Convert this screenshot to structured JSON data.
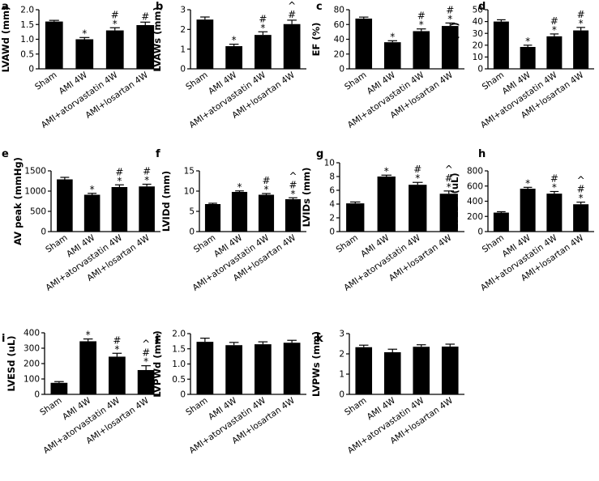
{
  "chart_data": [
    {
      "id": "a",
      "type": "bar",
      "letter": "a",
      "ylabel": "LVAWd (mm)",
      "ylim": [
        0,
        2.0
      ],
      "yticks": [
        0,
        0.5,
        1.0,
        1.5,
        2.0
      ],
      "yticklabels": [
        "0",
        "0.5",
        "1.0",
        "1.5",
        "2.0"
      ],
      "categories": [
        "Sham",
        "AMI  4W",
        "AMI+atorvastatin 4W",
        "AMI+losartan 4W"
      ],
      "values": [
        1.6,
        1.0,
        1.3,
        1.48
      ],
      "errors": [
        0.04,
        0.06,
        0.09,
        0.1
      ],
      "annotations": [
        [],
        [
          "*"
        ],
        [
          "*",
          "#"
        ],
        [
          "#"
        ]
      ]
    },
    {
      "id": "b",
      "type": "bar",
      "letter": "b",
      "ylabel": "LVAWs (mm)",
      "ylim": [
        0,
        3
      ],
      "yticks": [
        0,
        1,
        2,
        3
      ],
      "yticklabels": [
        "0",
        "1",
        "2",
        "3"
      ],
      "categories": [
        "Sham",
        "AMI  4W",
        "AMI+atorvastatin 4W",
        "AMI+losartan 4W"
      ],
      "values": [
        2.5,
        1.15,
        1.72,
        2.27
      ],
      "errors": [
        0.13,
        0.1,
        0.16,
        0.2
      ],
      "annotations": [
        [],
        [
          "*"
        ],
        [
          "*",
          "#"
        ],
        [
          "#",
          "^"
        ]
      ]
    },
    {
      "id": "c",
      "type": "bar",
      "letter": "c",
      "ylabel": "EF (%)",
      "ylim": [
        0,
        80
      ],
      "yticks": [
        0,
        20,
        40,
        60,
        80
      ],
      "yticklabels": [
        "0",
        "20",
        "40",
        "60",
        "80"
      ],
      "categories": [
        "Sham",
        "AMI  4W",
        "AMI+atorvastatin 4W",
        "AMI+losartan 4W"
      ],
      "values": [
        68,
        36,
        51,
        58
      ],
      "errors": [
        2,
        2,
        3,
        4
      ],
      "annotations": [
        [],
        [
          "*"
        ],
        [
          "*",
          "#"
        ],
        [
          "*",
          "#"
        ]
      ]
    },
    {
      "id": "d",
      "type": "bar",
      "letter": "d",
      "ylabel": "FS (%)",
      "ylim": [
        0,
        50
      ],
      "yticks": [
        0,
        10,
        20,
        30,
        40,
        50
      ],
      "yticklabels": [
        "0",
        "10",
        "20",
        "30",
        "40",
        "50"
      ],
      "categories": [
        "Sham",
        "AMI  4W",
        "AMI+atorvastatin 4W",
        "AMI+losartan 4W"
      ],
      "values": [
        40,
        18.5,
        27.5,
        32.5
      ],
      "errors": [
        1.5,
        1.5,
        2,
        2.5
      ],
      "annotations": [
        [],
        [
          "*"
        ],
        [
          "*",
          "#"
        ],
        [
          "*",
          "#"
        ]
      ]
    },
    {
      "id": "e",
      "type": "bar",
      "letter": "e",
      "ylabel": "AV peak (mmHg)",
      "ylim": [
        0,
        1500
      ],
      "yticks": [
        0,
        500,
        1000,
        1500
      ],
      "yticklabels": [
        "0",
        "500",
        "1000",
        "1500"
      ],
      "categories": [
        "Sham",
        "AMI  4W",
        "AMI+atorvastatin 4W",
        "AMI+losartan 4W"
      ],
      "values": [
        1290,
        910,
        1100,
        1115
      ],
      "errors": [
        50,
        35,
        55,
        55
      ],
      "annotations": [
        [],
        [
          "*"
        ],
        [
          "*",
          "#"
        ],
        [
          "*",
          "#"
        ]
      ]
    },
    {
      "id": "f",
      "type": "bar",
      "letter": "f",
      "ylabel": "LVIDd (mm)",
      "ylim": [
        0,
        15
      ],
      "yticks": [
        0,
        5,
        10,
        15
      ],
      "yticklabels": [
        "0",
        "5",
        "10",
        "15"
      ],
      "categories": [
        "Sham",
        "AMI  4W",
        "AMI+atorvastatin 4W",
        "AMI+losartan 4W"
      ],
      "values": [
        6.8,
        9.8,
        9.1,
        8.0
      ],
      "errors": [
        0.2,
        0.25,
        0.3,
        0.35
      ],
      "annotations": [
        [],
        [
          "*"
        ],
        [
          "*",
          "#"
        ],
        [
          "*",
          "#",
          "^"
        ]
      ]
    },
    {
      "id": "g",
      "type": "bar",
      "letter": "g",
      "ylabel": "LVIDs (mm)",
      "ylim": [
        0,
        10
      ],
      "yticks": [
        0,
        2,
        4,
        6,
        8,
        10
      ],
      "yticklabels": [
        "0",
        "2",
        "4",
        "6",
        "8",
        "10"
      ],
      "categories": [
        "Sham",
        "AMI  4W",
        "AMI+atorvastatin 4W",
        "AMI+losartan 4W"
      ],
      "values": [
        4.1,
        8.0,
        6.8,
        5.5
      ],
      "errors": [
        0.2,
        0.2,
        0.35,
        0.4
      ],
      "annotations": [
        [],
        [
          "*"
        ],
        [
          "*",
          "#"
        ],
        [
          "*",
          "#",
          "^"
        ]
      ]
    },
    {
      "id": "h",
      "type": "bar",
      "letter": "h",
      "ylabel": "LVEDd (uL)",
      "ylim": [
        0,
        800
      ],
      "yticks": [
        0,
        200,
        400,
        600,
        800
      ],
      "yticklabels": [
        "0",
        "200",
        "400",
        "600",
        "800"
      ],
      "categories": [
        "Sham",
        "AMI  4W",
        "AMI+atorvastatin 4W",
        "AMI+losartan 4W"
      ],
      "values": [
        250,
        565,
        500,
        360
      ],
      "errors": [
        12,
        18,
        28,
        28
      ],
      "annotations": [
        [],
        [
          "*"
        ],
        [
          "*",
          "#"
        ],
        [
          "*",
          "#",
          "^"
        ]
      ]
    },
    {
      "id": "i",
      "type": "bar",
      "letter": "i",
      "ylabel": "LVESd (uL)",
      "ylim": [
        0,
        400
      ],
      "yticks": [
        0,
        100,
        200,
        300,
        400
      ],
      "yticklabels": [
        "0",
        "100",
        "200",
        "300",
        "400"
      ],
      "categories": [
        "Sham",
        "AMI  4W",
        "AMI+atorvastatin 4W",
        "AMI+losartan 4W"
      ],
      "values": [
        75,
        345,
        245,
        158
      ],
      "errors": [
        8,
        15,
        22,
        28
      ],
      "annotations": [
        [],
        [
          "*"
        ],
        [
          "*",
          "#"
        ],
        [
          "*",
          "#",
          "^"
        ]
      ]
    },
    {
      "id": "j",
      "type": "bar",
      "letter": "j",
      "ylabel": "LVPWd (mm)",
      "ylim": [
        0,
        2.0
      ],
      "yticks": [
        0,
        0.5,
        1.0,
        1.5,
        2.0
      ],
      "yticklabels": [
        "0",
        "0.5",
        "1.0",
        "1.5",
        "2.0"
      ],
      "categories": [
        "Sham",
        "AMI  4W",
        "AMI+atorvastatin 4W",
        "AMI+losartan 4W"
      ],
      "values": [
        1.73,
        1.62,
        1.65,
        1.7
      ],
      "errors": [
        0.12,
        0.09,
        0.08,
        0.08
      ],
      "annotations": [
        [],
        [],
        [],
        []
      ]
    },
    {
      "id": "k",
      "type": "bar",
      "letter": "k",
      "ylabel": "LVPWs (mm)",
      "ylim": [
        0,
        3
      ],
      "yticks": [
        0,
        1,
        2,
        3
      ],
      "yticklabels": [
        "0",
        "1",
        "2",
        "3"
      ],
      "categories": [
        "Sham",
        "AMI  4W",
        "AMI+atorvastatin 4W",
        "AMI+losartan 4W"
      ],
      "values": [
        2.33,
        2.08,
        2.35,
        2.36
      ],
      "errors": [
        0.1,
        0.15,
        0.1,
        0.12
      ],
      "annotations": [
        [],
        [],
        [],
        []
      ]
    }
  ]
}
